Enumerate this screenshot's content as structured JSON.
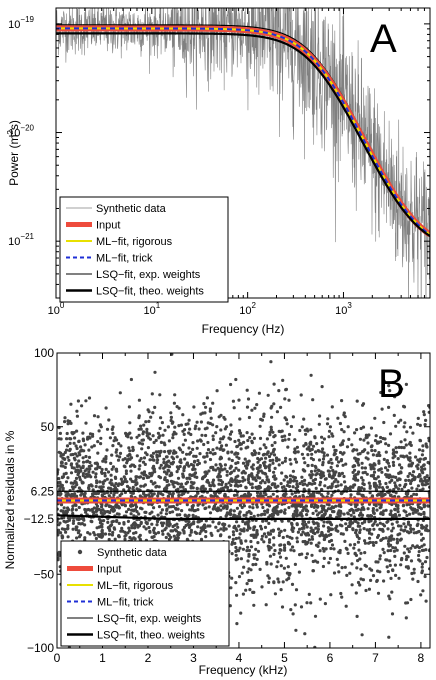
{
  "chart_data": [
    {
      "panel_label": "A",
      "type": "line",
      "xscale": "log",
      "yscale": "log",
      "xlabel": "Frequency (Hz)",
      "ylabel_main": "Power (m",
      "ylabel_sup": "2",
      "ylabel_tail": "s)",
      "xlim": [
        1,
        8000
      ],
      "ylim": [
        3e-22,
        1.4e-19
      ],
      "xticks": [
        {
          "v": 1,
          "b": "10",
          "e": "0"
        },
        {
          "v": 10,
          "b": "10",
          "e": "1"
        },
        {
          "v": 100,
          "b": "10",
          "e": "2"
        },
        {
          "v": 1000,
          "b": "10",
          "e": "3"
        }
      ],
      "yticks": [
        {
          "v": 1e-21,
          "b": "10",
          "e": "−21"
        },
        {
          "v": 1e-20,
          "b": "10",
          "e": "−20"
        },
        {
          "v": 1e-19,
          "b": "10",
          "e": "−19"
        }
      ],
      "model": {
        "P0": 9e-20,
        "fc": 500,
        "floor": 8e-22
      },
      "series": [
        {
          "name": "Synthetic data",
          "color": "#808080",
          "style": "noise"
        },
        {
          "name": "Input",
          "color": "#ee4b3c",
          "style": "thick"
        },
        {
          "name": "ML−fit, rigorous",
          "color": "#e8e000",
          "style": "solid"
        },
        {
          "name": "ML−fit, trick",
          "color": "#1f2fd6",
          "style": "dashed"
        },
        {
          "name": "LSQ−fit, exp. weights",
          "color": "#000000",
          "style": "thin"
        },
        {
          "name": "LSQ−fit, theo. weights",
          "color": "#000000",
          "style": "bold"
        }
      ],
      "legend_loc": "lower-left"
    },
    {
      "panel_label": "B",
      "type": "scatter",
      "xlabel": "Frequency (kHz)",
      "ylabel": "Normalized residuals in %",
      "xlim": [
        0,
        8.2
      ],
      "ylim": [
        -100,
        100
      ],
      "xticks": [
        "0",
        "1",
        "2",
        "3",
        "4",
        "5",
        "6",
        "7",
        "8"
      ],
      "yticks": [
        {
          "v": -100,
          "label": "−100"
        },
        {
          "v": -50,
          "label": "−50"
        },
        {
          "v": -12.5,
          "label": "−12.5"
        },
        {
          "v": 6.25,
          "label": "6.25"
        },
        {
          "v": 50,
          "label": "50"
        },
        {
          "v": 100,
          "label": "100"
        }
      ],
      "scatter_spread": {
        "center": 0,
        "std": 30
      },
      "lines": {
        "input": 0,
        "ml_rigorous": 0,
        "ml_trick": 0,
        "lsq_exp": 6.25,
        "lsq_theo_start": -10,
        "lsq_theo_end": -12.5
      },
      "series": [
        {
          "name": "Synthetic data",
          "color": "#444444",
          "style": "dot"
        },
        {
          "name": "Input",
          "color": "#ee4b3c",
          "style": "thick"
        },
        {
          "name": "ML−fit, rigorous",
          "color": "#e8e000",
          "style": "solid"
        },
        {
          "name": "ML−fit, trick",
          "color": "#1f2fd6",
          "style": "dashed"
        },
        {
          "name": "LSQ−fit, exp. weights",
          "color": "#000000",
          "style": "thin"
        },
        {
          "name": "LSQ−fit, theo. weights",
          "color": "#000000",
          "style": "bold"
        }
      ],
      "legend_loc": "lower-left"
    }
  ]
}
